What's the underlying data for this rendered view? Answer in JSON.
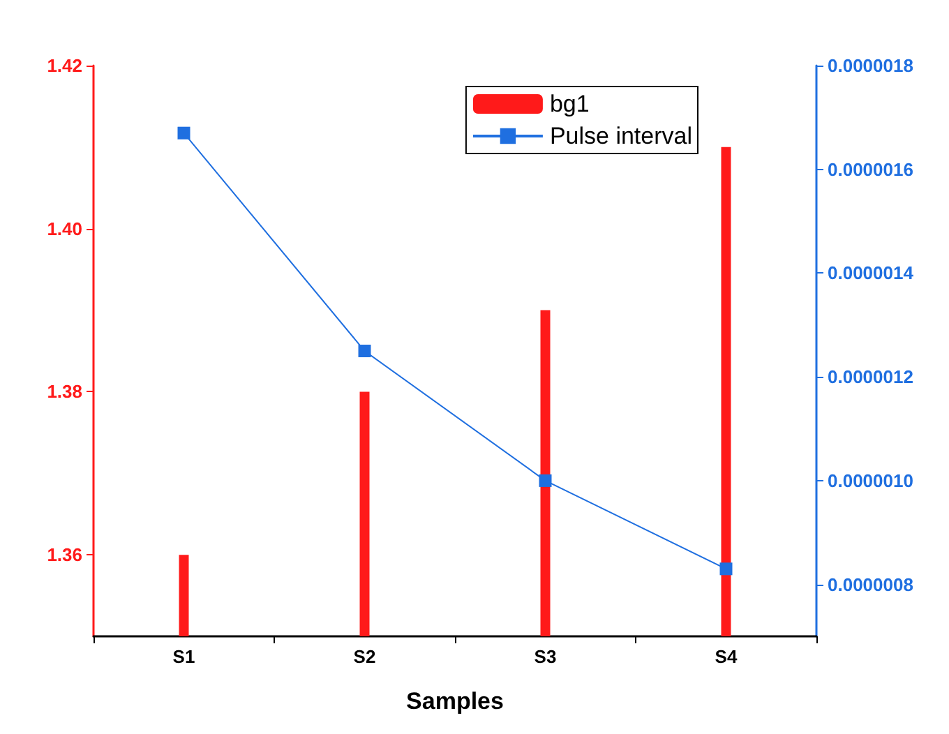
{
  "chart_data": {
    "type": "bar",
    "xlabel": "Samples",
    "categories": [
      "S1",
      "S2",
      "S3",
      "S4"
    ],
    "series": [
      {
        "name": "bg1",
        "color": "#ff1a1a",
        "values": [
          1.36,
          1.38,
          1.39,
          1.41
        ]
      },
      {
        "name": "Pulse interval",
        "type": "line",
        "axis": "y2",
        "color": "#1f6fe0",
        "marker": "square",
        "line_style": "solid",
        "values": [
          1.67e-06,
          1.25e-06,
          1e-06,
          8.3e-07
        ]
      }
    ],
    "ylim": [
      1.35,
      1.42
    ],
    "yticks": [
      {
        "value": 1.36,
        "label": "1.36"
      },
      {
        "value": 1.38,
        "label": "1.38"
      },
      {
        "value": 1.4,
        "label": "1.40"
      },
      {
        "value": 1.42,
        "label": "1.42"
      }
    ],
    "y2lim": [
      7e-07,
      1.8e-06
    ],
    "y2ticks": [
      {
        "value": 8e-07,
        "label": "0.0000008"
      },
      {
        "value": 1e-06,
        "label": "0.0000010"
      },
      {
        "value": 1.2e-06,
        "label": "0.0000012"
      },
      {
        "value": 1.4e-06,
        "label": "0.0000014"
      },
      {
        "value": 1.6e-06,
        "label": "0.0000016"
      },
      {
        "value": 1.8e-06,
        "label": "0.0000018"
      }
    ],
    "grid": false,
    "legend": "top right"
  }
}
